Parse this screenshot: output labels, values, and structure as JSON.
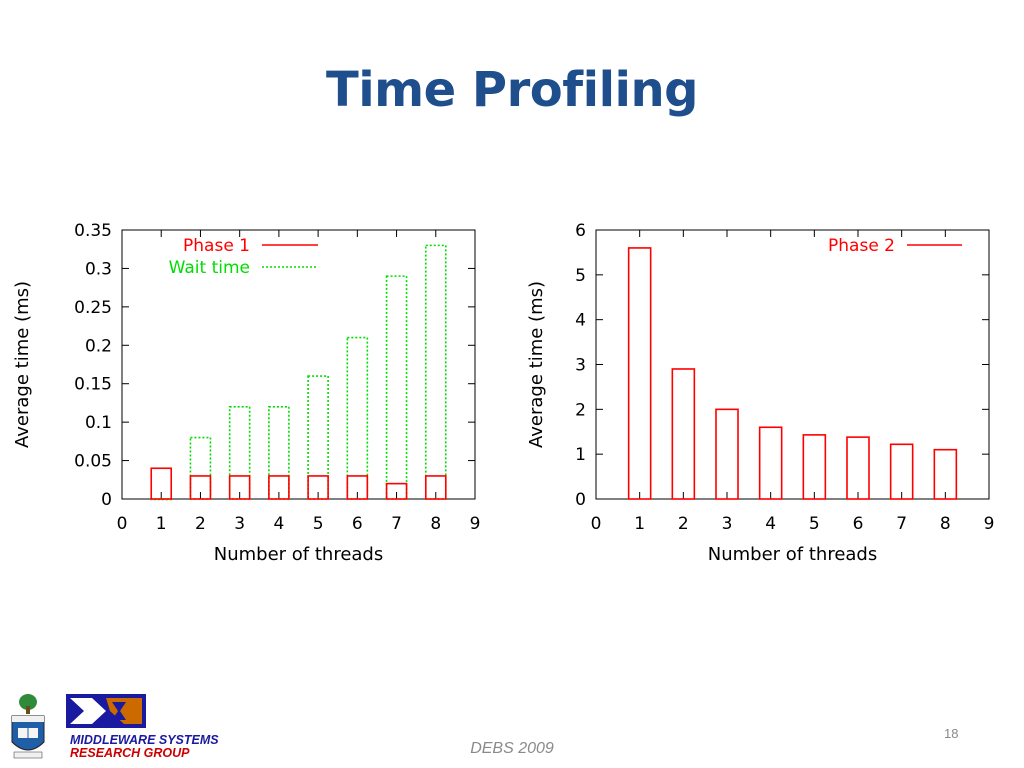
{
  "slide": {
    "title": "Time Profiling",
    "conference": "DEBS 2009",
    "page_number": "18",
    "logo_line1": "MIDDLEWARE SYSTEMS",
    "logo_line2": "RESEARCH GROUP"
  },
  "colors": {
    "title": "#1f4e8c",
    "phase1": "#ff0000",
    "wait": "#00dd00",
    "phase2": "#ff0000",
    "msrg_blue": "#1a1aa0",
    "msrg_red": "#cc0000"
  },
  "chart_data": [
    {
      "type": "bar",
      "xlabel": "Number of threads",
      "ylabel": "Average time (ms)",
      "xlim": [
        0,
        9
      ],
      "ylim": [
        0,
        0.35
      ],
      "xticks": [
        "0",
        "1",
        "2",
        "3",
        "4",
        "5",
        "6",
        "7",
        "8",
        "9"
      ],
      "yticks": [
        "0",
        "0.05",
        "0.1",
        "0.15",
        "0.2",
        "0.25",
        "0.3",
        "0.35"
      ],
      "legend_position": "top-left",
      "grid": false,
      "x": [
        1,
        2,
        3,
        4,
        5,
        6,
        7,
        8
      ],
      "series": [
        {
          "name": "Phase 1",
          "style": "solid",
          "values": [
            0.04,
            0.03,
            0.03,
            0.03,
            0.03,
            0.03,
            0.02,
            0.03
          ]
        },
        {
          "name": "Wait time",
          "style": "dotted",
          "values": [
            0.0,
            0.08,
            0.12,
            0.12,
            0.16,
            0.21,
            0.29,
            0.33
          ]
        }
      ]
    },
    {
      "type": "bar",
      "xlabel": "Number of threads",
      "ylabel": "Average time (ms)",
      "xlim": [
        0,
        9
      ],
      "ylim": [
        0,
        6
      ],
      "xticks": [
        "0",
        "1",
        "2",
        "3",
        "4",
        "5",
        "6",
        "7",
        "8",
        "9"
      ],
      "yticks": [
        "0",
        "1",
        "2",
        "3",
        "4",
        "5",
        "6"
      ],
      "legend_position": "top-right",
      "grid": false,
      "x": [
        1,
        2,
        3,
        4,
        5,
        6,
        7,
        8
      ],
      "series": [
        {
          "name": "Phase 2",
          "style": "solid",
          "values": [
            5.6,
            2.9,
            2.0,
            1.6,
            1.43,
            1.38,
            1.22,
            1.1
          ]
        }
      ]
    }
  ]
}
